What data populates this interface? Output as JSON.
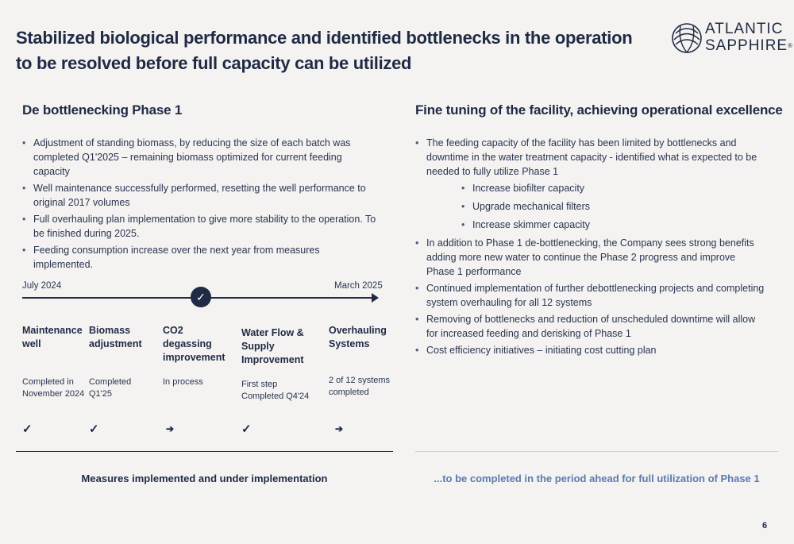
{
  "title": "Stabilized biological performance and identified bottlenecks in the operation to be resolved before full capacity can be utilized",
  "logo": {
    "line1": "ATLANTIC",
    "line2": "SAPPHIRE",
    "mark": "®",
    "icon": "atlantic-sapphire-logo-icon"
  },
  "left": {
    "heading": "De bottlenecking Phase 1",
    "bullets": [
      "Adjustment of standing biomass, by reducing the size of each batch was completed Q1'2025 – remaining biomass optimized for current feeding capacity",
      "Well maintenance successfully performed, resetting the well performance to original 2017 volumes",
      "Full overhauling plan implementation to give more stability to the operation. To be finished during 2025.",
      "Feeding consumption increase over the next year from measures implemented."
    ],
    "timeline": {
      "start_label": "July 2024",
      "end_label": "March 2025",
      "marker_icon": "check-icon",
      "marker_glyph": "✓",
      "stages": [
        {
          "title": "Maintenance well",
          "status": "Completed in November 2024",
          "mark": "✓",
          "mark_icon": "check-icon"
        },
        {
          "title": "Biomass adjustment",
          "status": "Completed Q1'25",
          "mark": "✓",
          "mark_icon": "check-icon"
        },
        {
          "title": "CO2 degassing improvement",
          "status": "In process",
          "mark": "➔",
          "mark_icon": "arrow-right-icon"
        },
        {
          "title": "Water Flow & Supply Improvement",
          "status": "First step Completed Q4'24",
          "mark": "✓",
          "mark_icon": "check-icon"
        },
        {
          "title": "Overhauling Systems",
          "status": "2 of 12 systems completed",
          "mark": "➔",
          "mark_icon": "arrow-right-icon"
        }
      ]
    },
    "footer": "Measures implemented and under implementation"
  },
  "right": {
    "heading": "Fine tuning of the facility, achieving operational excellence",
    "bullet1": "The feeding capacity of the facility has been limited by bottlenecks and downtime in the water treatment capacity - identified what is expected to be needed to fully utilize Phase 1",
    "sub_bullets": [
      "Increase biofilter capacity",
      "Upgrade mechanical filters",
      "Increase skimmer capacity"
    ],
    "bullets_rest": [
      "In addition to Phase 1 de-bottlenecking, the Company sees strong benefits adding more new water to continue the Phase 2 progress and improve Phase 1 performance",
      "Continued implementation of further debottlenecking projects and completing system overhauling for all 12 systems",
      "Removing of bottlenecks and reduction of unscheduled downtime will allow for increased feeding and derisking of Phase 1",
      "Cost efficiency initiatives – initiating cost cutting plan"
    ],
    "footer": "...to be completed in the period ahead for full utilization of Phase 1"
  },
  "page_number": "6",
  "colors": {
    "navy": "#1f2a44",
    "accent_blue": "#5a7bb0",
    "background": "#f4f3f1"
  }
}
